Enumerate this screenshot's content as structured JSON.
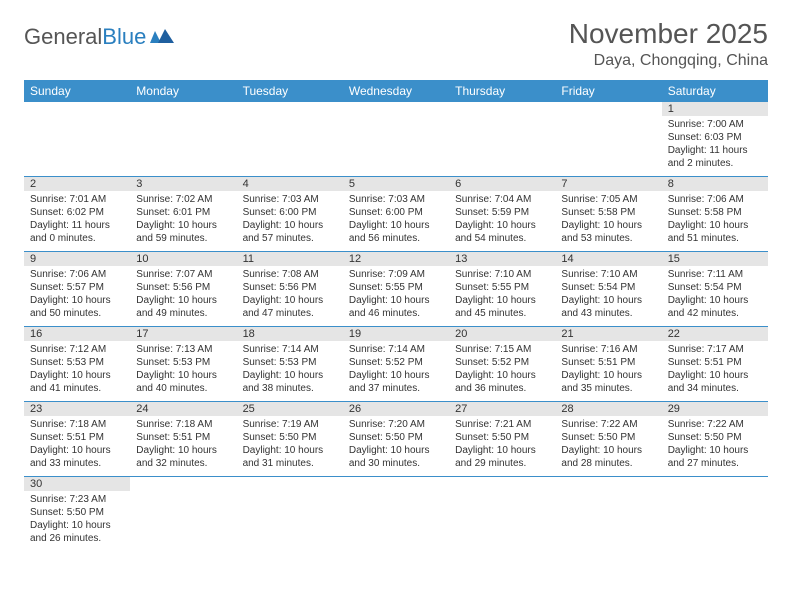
{
  "logo": {
    "part1": "General",
    "part2": "Blue"
  },
  "header": {
    "month_title": "November 2025",
    "location": "Daya, Chongqing, China"
  },
  "colors": {
    "header_bg": "#3b8fca",
    "header_text": "#ffffff",
    "daynum_bg": "#e5e5e5",
    "rule": "#3b8fca"
  },
  "weekdays": [
    "Sunday",
    "Monday",
    "Tuesday",
    "Wednesday",
    "Thursday",
    "Friday",
    "Saturday"
  ],
  "weeks": [
    [
      null,
      null,
      null,
      null,
      null,
      null,
      {
        "n": "1",
        "sr": "Sunrise: 7:00 AM",
        "ss": "Sunset: 6:03 PM",
        "dl": "Daylight: 11 hours and 2 minutes."
      }
    ],
    [
      {
        "n": "2",
        "sr": "Sunrise: 7:01 AM",
        "ss": "Sunset: 6:02 PM",
        "dl": "Daylight: 11 hours and 0 minutes."
      },
      {
        "n": "3",
        "sr": "Sunrise: 7:02 AM",
        "ss": "Sunset: 6:01 PM",
        "dl": "Daylight: 10 hours and 59 minutes."
      },
      {
        "n": "4",
        "sr": "Sunrise: 7:03 AM",
        "ss": "Sunset: 6:00 PM",
        "dl": "Daylight: 10 hours and 57 minutes."
      },
      {
        "n": "5",
        "sr": "Sunrise: 7:03 AM",
        "ss": "Sunset: 6:00 PM",
        "dl": "Daylight: 10 hours and 56 minutes."
      },
      {
        "n": "6",
        "sr": "Sunrise: 7:04 AM",
        "ss": "Sunset: 5:59 PM",
        "dl": "Daylight: 10 hours and 54 minutes."
      },
      {
        "n": "7",
        "sr": "Sunrise: 7:05 AM",
        "ss": "Sunset: 5:58 PM",
        "dl": "Daylight: 10 hours and 53 minutes."
      },
      {
        "n": "8",
        "sr": "Sunrise: 7:06 AM",
        "ss": "Sunset: 5:58 PM",
        "dl": "Daylight: 10 hours and 51 minutes."
      }
    ],
    [
      {
        "n": "9",
        "sr": "Sunrise: 7:06 AM",
        "ss": "Sunset: 5:57 PM",
        "dl": "Daylight: 10 hours and 50 minutes."
      },
      {
        "n": "10",
        "sr": "Sunrise: 7:07 AM",
        "ss": "Sunset: 5:56 PM",
        "dl": "Daylight: 10 hours and 49 minutes."
      },
      {
        "n": "11",
        "sr": "Sunrise: 7:08 AM",
        "ss": "Sunset: 5:56 PM",
        "dl": "Daylight: 10 hours and 47 minutes."
      },
      {
        "n": "12",
        "sr": "Sunrise: 7:09 AM",
        "ss": "Sunset: 5:55 PM",
        "dl": "Daylight: 10 hours and 46 minutes."
      },
      {
        "n": "13",
        "sr": "Sunrise: 7:10 AM",
        "ss": "Sunset: 5:55 PM",
        "dl": "Daylight: 10 hours and 45 minutes."
      },
      {
        "n": "14",
        "sr": "Sunrise: 7:10 AM",
        "ss": "Sunset: 5:54 PM",
        "dl": "Daylight: 10 hours and 43 minutes."
      },
      {
        "n": "15",
        "sr": "Sunrise: 7:11 AM",
        "ss": "Sunset: 5:54 PM",
        "dl": "Daylight: 10 hours and 42 minutes."
      }
    ],
    [
      {
        "n": "16",
        "sr": "Sunrise: 7:12 AM",
        "ss": "Sunset: 5:53 PM",
        "dl": "Daylight: 10 hours and 41 minutes."
      },
      {
        "n": "17",
        "sr": "Sunrise: 7:13 AM",
        "ss": "Sunset: 5:53 PM",
        "dl": "Daylight: 10 hours and 40 minutes."
      },
      {
        "n": "18",
        "sr": "Sunrise: 7:14 AM",
        "ss": "Sunset: 5:53 PM",
        "dl": "Daylight: 10 hours and 38 minutes."
      },
      {
        "n": "19",
        "sr": "Sunrise: 7:14 AM",
        "ss": "Sunset: 5:52 PM",
        "dl": "Daylight: 10 hours and 37 minutes."
      },
      {
        "n": "20",
        "sr": "Sunrise: 7:15 AM",
        "ss": "Sunset: 5:52 PM",
        "dl": "Daylight: 10 hours and 36 minutes."
      },
      {
        "n": "21",
        "sr": "Sunrise: 7:16 AM",
        "ss": "Sunset: 5:51 PM",
        "dl": "Daylight: 10 hours and 35 minutes."
      },
      {
        "n": "22",
        "sr": "Sunrise: 7:17 AM",
        "ss": "Sunset: 5:51 PM",
        "dl": "Daylight: 10 hours and 34 minutes."
      }
    ],
    [
      {
        "n": "23",
        "sr": "Sunrise: 7:18 AM",
        "ss": "Sunset: 5:51 PM",
        "dl": "Daylight: 10 hours and 33 minutes."
      },
      {
        "n": "24",
        "sr": "Sunrise: 7:18 AM",
        "ss": "Sunset: 5:51 PM",
        "dl": "Daylight: 10 hours and 32 minutes."
      },
      {
        "n": "25",
        "sr": "Sunrise: 7:19 AM",
        "ss": "Sunset: 5:50 PM",
        "dl": "Daylight: 10 hours and 31 minutes."
      },
      {
        "n": "26",
        "sr": "Sunrise: 7:20 AM",
        "ss": "Sunset: 5:50 PM",
        "dl": "Daylight: 10 hours and 30 minutes."
      },
      {
        "n": "27",
        "sr": "Sunrise: 7:21 AM",
        "ss": "Sunset: 5:50 PM",
        "dl": "Daylight: 10 hours and 29 minutes."
      },
      {
        "n": "28",
        "sr": "Sunrise: 7:22 AM",
        "ss": "Sunset: 5:50 PM",
        "dl": "Daylight: 10 hours and 28 minutes."
      },
      {
        "n": "29",
        "sr": "Sunrise: 7:22 AM",
        "ss": "Sunset: 5:50 PM",
        "dl": "Daylight: 10 hours and 27 minutes."
      }
    ],
    [
      {
        "n": "30",
        "sr": "Sunrise: 7:23 AM",
        "ss": "Sunset: 5:50 PM",
        "dl": "Daylight: 10 hours and 26 minutes."
      },
      null,
      null,
      null,
      null,
      null,
      null
    ]
  ]
}
